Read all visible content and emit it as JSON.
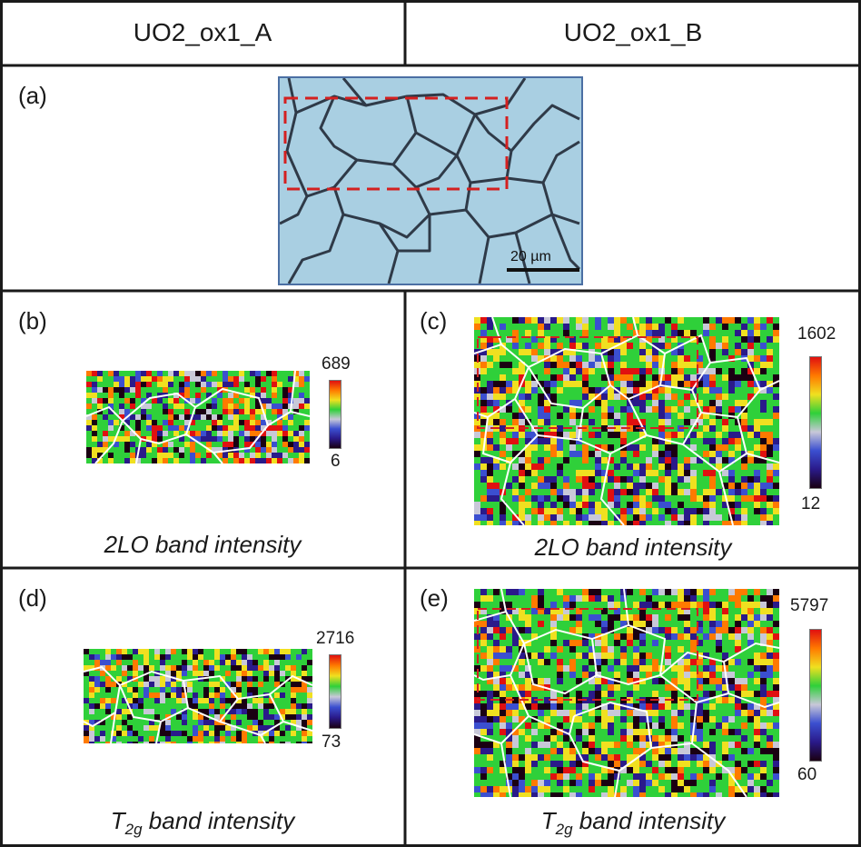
{
  "header": {
    "col_a": "UO2_ox1_A",
    "col_b": "UO2_ox1_B"
  },
  "panels": {
    "a": {
      "label": "(a)",
      "scale_text": "20 µm"
    },
    "b": {
      "label": "(b)",
      "cbar_max": "689",
      "cbar_min": "6",
      "caption": "2LO band intensity"
    },
    "c": {
      "label": "(c)",
      "cbar_max": "1602",
      "cbar_min": "12",
      "caption": "2LO band intensity"
    },
    "d": {
      "label": "(d)",
      "cbar_max": "2716",
      "cbar_min": "73",
      "caption_main": "T",
      "caption_sub": "2g",
      "caption_rest": " band intensity"
    },
    "e": {
      "label": "(e)",
      "cbar_max": "5797",
      "cbar_min": "60",
      "caption_main": "T",
      "caption_sub": "2g",
      "caption_rest": " band intensity"
    }
  },
  "colors": {
    "grid_line": "#1a1a1a",
    "selection_box": "#d42020",
    "grain_boundary": "#ffffff",
    "micrograph_bg": "#a9cfe2",
    "colormap": [
      "#1a0012",
      "#2a1a8a",
      "#3b4fd0",
      "#c8c8d8",
      "#2fd03a",
      "#f0e020",
      "#ff7a00",
      "#e01010"
    ]
  },
  "icons": {
    "colorbar": "vertical-gradient-colorbar"
  }
}
